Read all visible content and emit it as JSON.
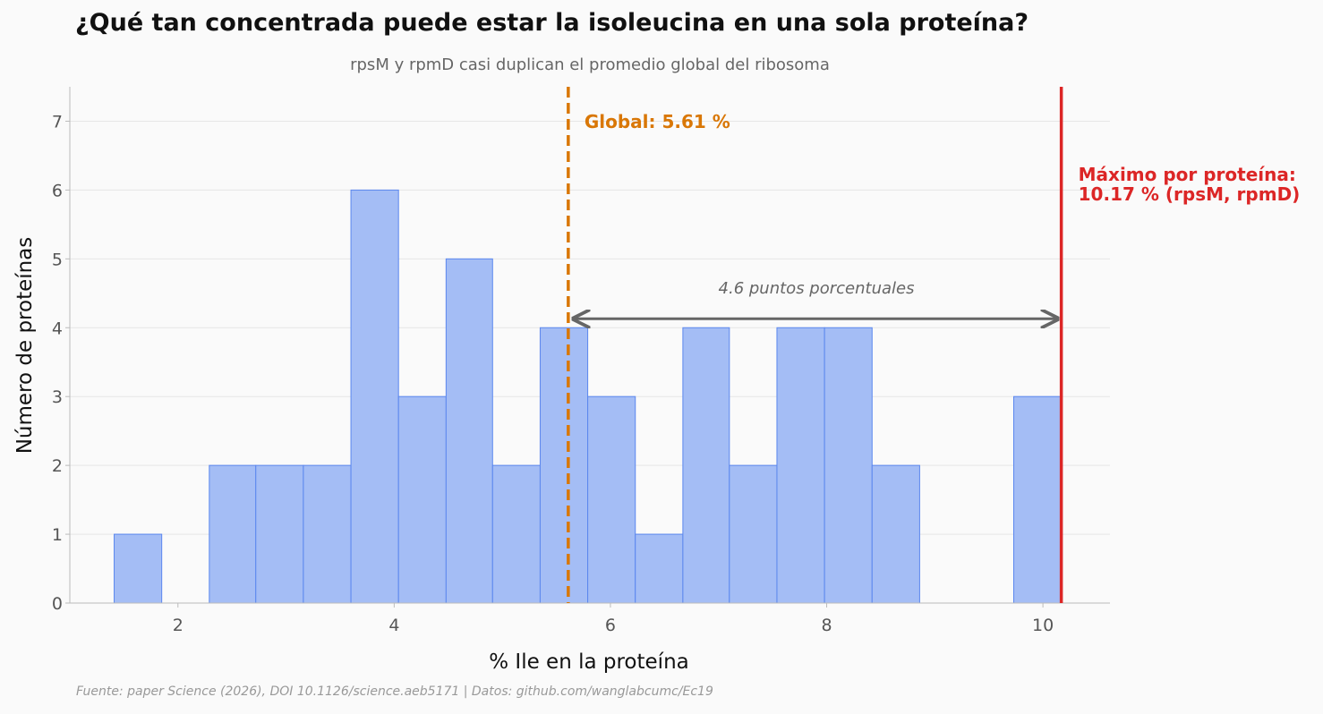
{
  "header": {
    "title": "¿Qué tan concentrada puede estar la isoleucina en una sola proteína?",
    "subtitle": "rpsM y rpmD casi duplican el promedio global del ribosoma"
  },
  "footer": {
    "source": "Fuente: paper Science (2026), DOI 10.1126/science.aeb5171 | Datos: github.com/wanglabcumc/Ec19"
  },
  "chart_data": {
    "type": "bar",
    "xlabel": "% Ile en la proteína",
    "ylabel": "Número de proteínas",
    "xlim": [
      1.0,
      10.62
    ],
    "ylim": [
      0,
      7.5
    ],
    "xticks": [
      2,
      4,
      6,
      8,
      10
    ],
    "yticks": [
      0,
      1,
      2,
      3,
      4,
      5,
      6,
      7
    ],
    "grid": "horizontal",
    "bin_edges": [
      1.41,
      1.85,
      2.29,
      2.72,
      3.16,
      3.6,
      4.04,
      4.48,
      4.91,
      5.35,
      5.79,
      6.23,
      6.67,
      7.1,
      7.54,
      7.98,
      8.42,
      8.86,
      9.29,
      9.73,
      10.17
    ],
    "counts": [
      1,
      0,
      2,
      2,
      2,
      6,
      3,
      5,
      2,
      4,
      3,
      1,
      4,
      2,
      4,
      4,
      2,
      0,
      0,
      3
    ],
    "colors": {
      "bar_fill": "#a4bdf5",
      "bar_stroke": "#5b87ee",
      "global_line": "#d97706",
      "max_line": "#dc2626",
      "arrow": "#666666"
    },
    "reference_lines": {
      "global": {
        "x": 5.61,
        "label": "Global: 5.61 %"
      },
      "max": {
        "x": 10.17,
        "label_line1": "Máximo por proteína:",
        "label_line2": "10.17 % (rpsM, rpmD)"
      }
    },
    "annotation": {
      "text": "4.6 puntos porcentuales",
      "y": 4.13
    }
  }
}
